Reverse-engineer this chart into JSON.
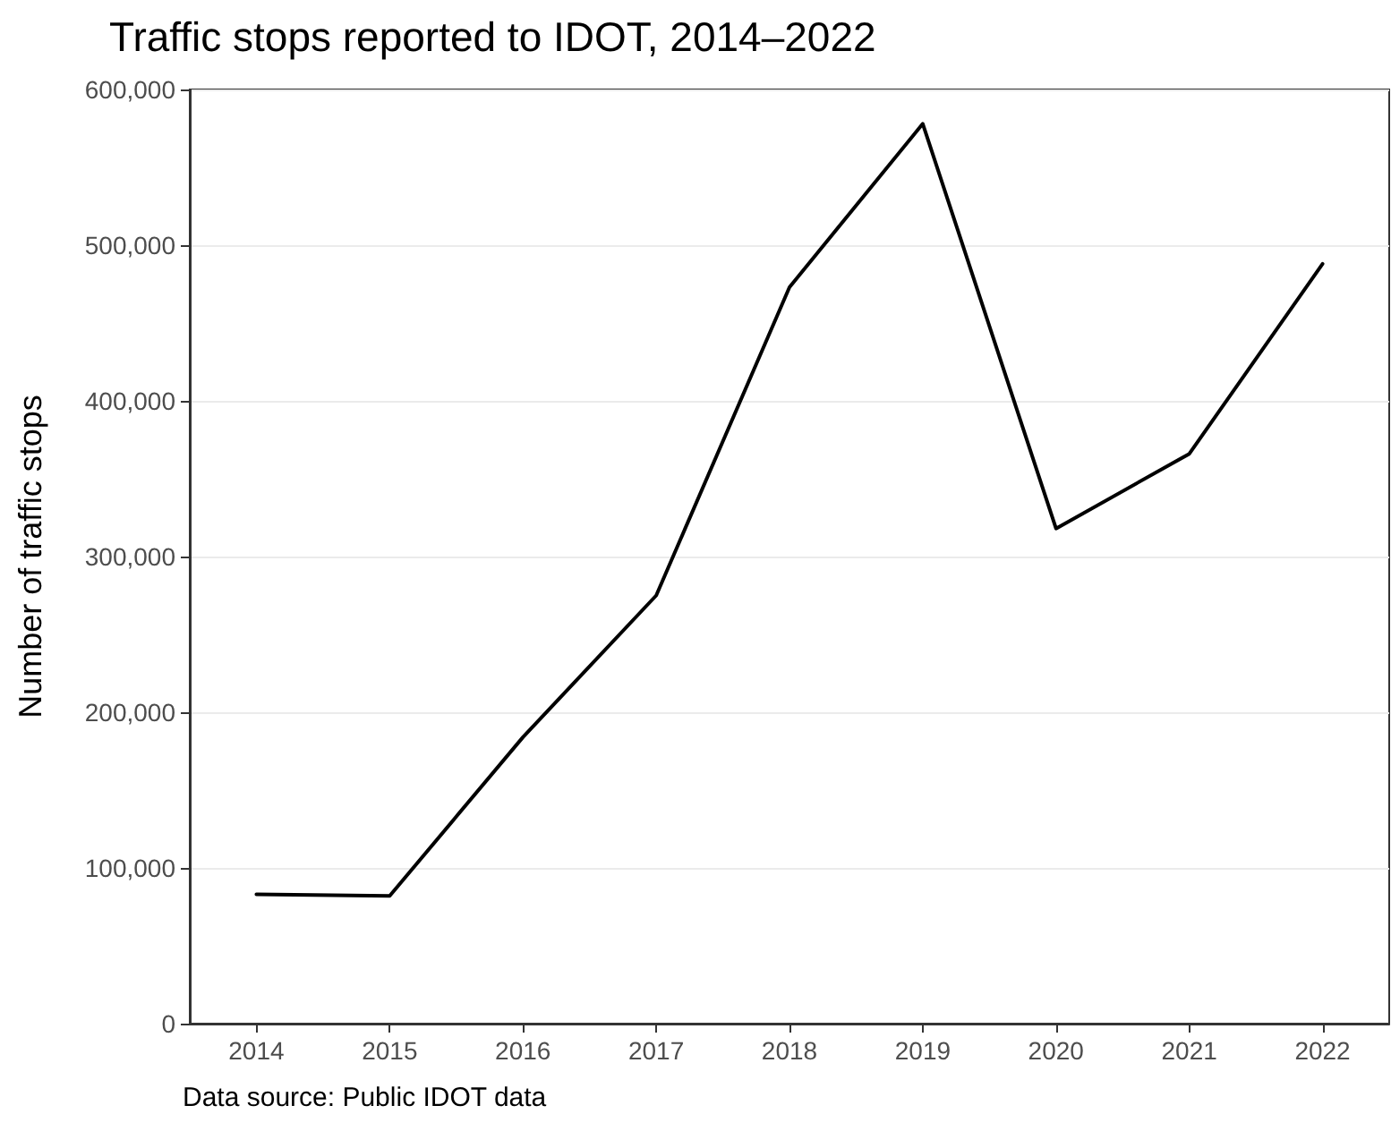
{
  "chart_data": {
    "type": "line",
    "title": "Traffic stops reported to IDOT, 2014–2022",
    "ylabel": "Number of traffic stops",
    "annotations": [
      "Data source: Public IDOT data"
    ],
    "categories": [
      "2014",
      "2015",
      "2016",
      "2017",
      "2018",
      "2019",
      "2020",
      "2021",
      "2022"
    ],
    "series": [
      {
        "color": "#000000",
        "values": [
          83000,
          82000,
          184000,
          275000,
          473000,
          578000,
          318000,
          366000,
          488000
        ]
      }
    ],
    "ylim": [
      0,
      600000
    ],
    "yticks": [
      {
        "value": 0,
        "label": "0"
      },
      {
        "value": 100000,
        "label": "100,000"
      },
      {
        "value": 200000,
        "label": "200,000"
      },
      {
        "value": 300000,
        "label": "300,000"
      },
      {
        "value": 400000,
        "label": "400,000"
      },
      {
        "value": 500000,
        "label": "500,000"
      },
      {
        "value": 600000,
        "label": "600,000"
      }
    ],
    "grid": "y",
    "marker": "none",
    "line_style": "solid"
  }
}
